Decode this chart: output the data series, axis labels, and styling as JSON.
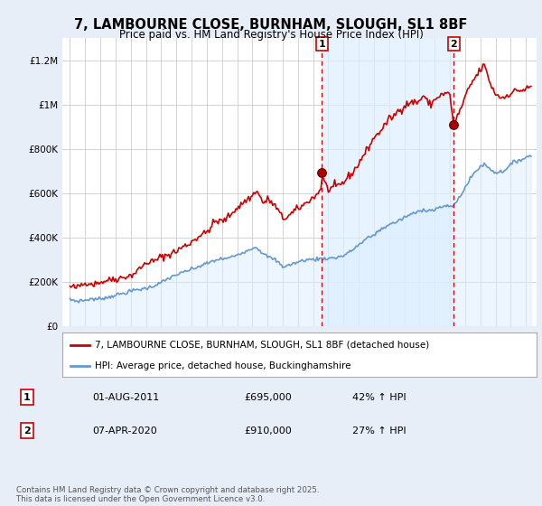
{
  "title": "7, LAMBOURNE CLOSE, BURNHAM, SLOUGH, SL1 8BF",
  "subtitle": "Price paid vs. HM Land Registry's House Price Index (HPI)",
  "legend_property": "7, LAMBOURNE CLOSE, BURNHAM, SLOUGH, SL1 8BF (detached house)",
  "legend_hpi": "HPI: Average price, detached house, Buckinghamshire",
  "footer": "Contains HM Land Registry data © Crown copyright and database right 2025.\nThis data is licensed under the Open Government Licence v3.0.",
  "annotation1_label": "1",
  "annotation1_date": "01-AUG-2011",
  "annotation1_price": "£695,000",
  "annotation1_hpi": "42% ↑ HPI",
  "annotation2_label": "2",
  "annotation2_date": "07-APR-2020",
  "annotation2_price": "£910,000",
  "annotation2_hpi": "27% ↑ HPI",
  "property_color": "#cc0000",
  "hpi_color": "#6699cc",
  "hpi_fill_color": "#ddeeff",
  "shade_color": "#ddeeff",
  "background_color": "#e8eef8",
  "plot_bg_color": "#ffffff",
  "ylim": [
    0,
    1300000
  ],
  "yticks": [
    0,
    200000,
    400000,
    600000,
    800000,
    1000000,
    1200000
  ],
  "ytick_labels": [
    "£0",
    "£200K",
    "£400K",
    "£600K",
    "£800K",
    "£1M",
    "£1.2M"
  ],
  "vline1_x": 2011.583,
  "vline2_x": 2020.25,
  "marker1_x": 2011.583,
  "marker1_y": 695000,
  "marker2_x": 2020.25,
  "marker2_y": 910000,
  "xmin": 1994.5,
  "xmax": 2025.7
}
